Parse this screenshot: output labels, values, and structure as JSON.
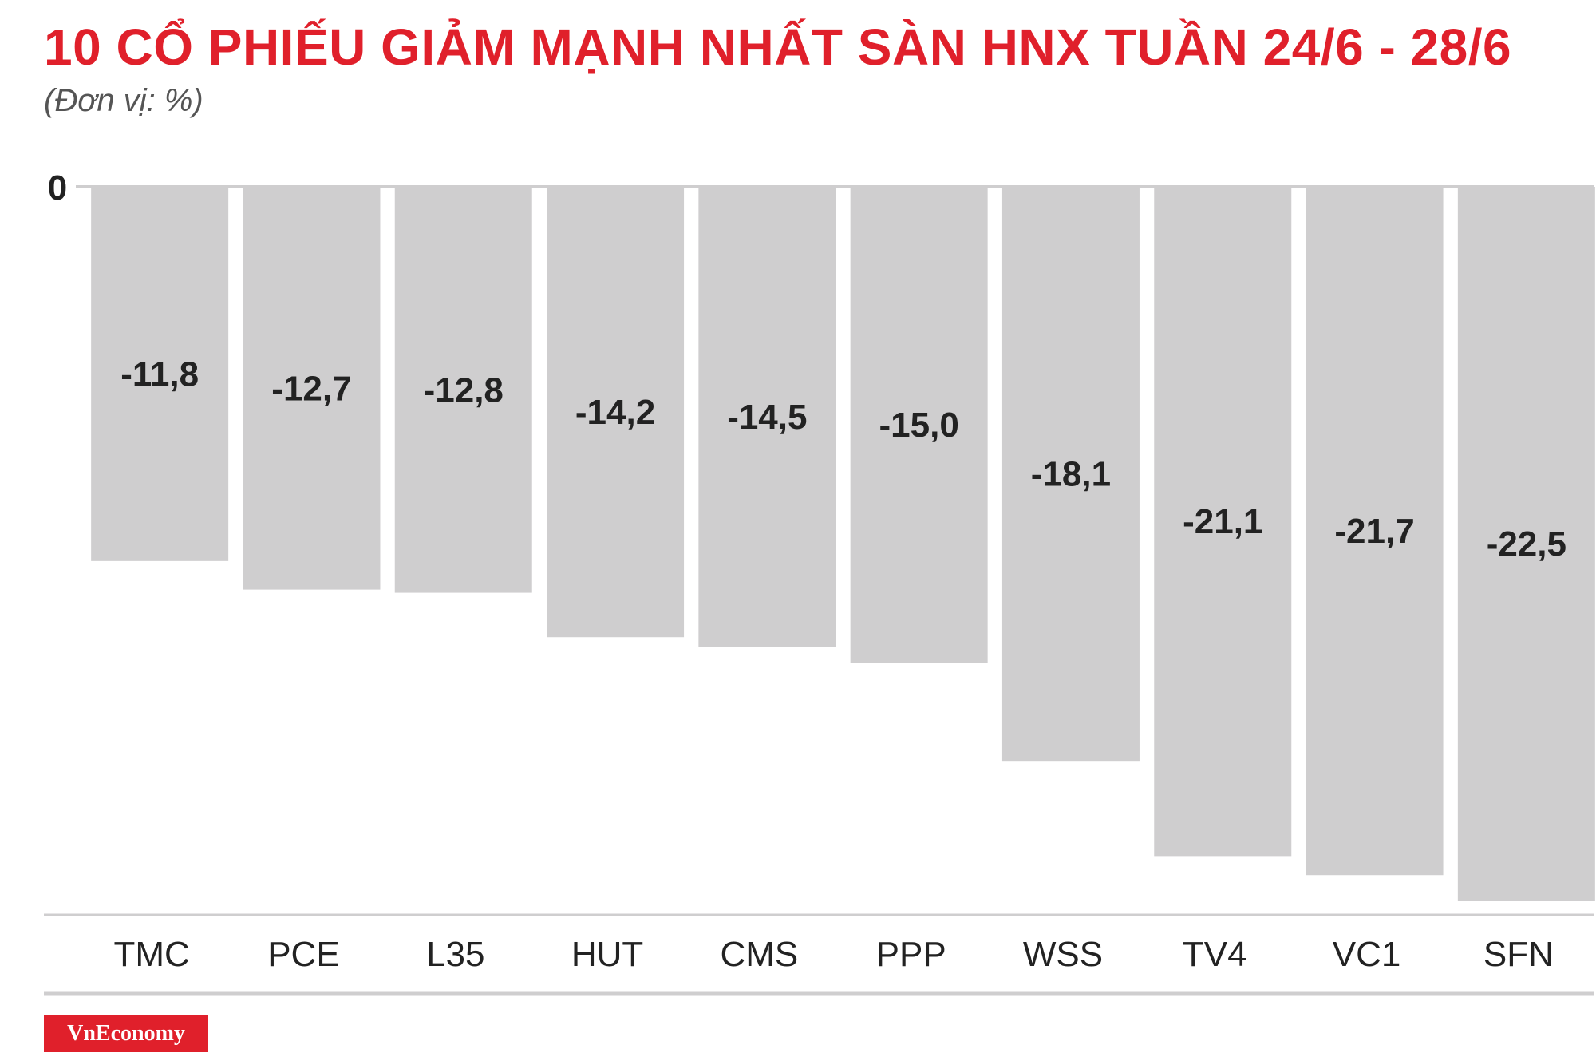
{
  "title": "10 CỔ PHIẾU GIẢM MẠNH NHẤT SÀN HNX TUẦN 24/6 - 28/6",
  "subtitle": "(Đơn vị: %)",
  "logo_text": "VnEconomy",
  "colors": {
    "title": "#e0202b",
    "bar": "#cfcecf",
    "axis": "#cfcecf",
    "logo_bg": "#e0202b"
  },
  "chart_data": {
    "type": "bar",
    "categories": [
      "TMC",
      "PCE",
      "L35",
      "HUT",
      "CMS",
      "PPP",
      "WSS",
      "TV4",
      "VC1",
      "SFN"
    ],
    "values": [
      -11.8,
      -12.7,
      -12.8,
      -14.2,
      -14.5,
      -15.0,
      -18.1,
      -21.1,
      -21.7,
      -22.5
    ],
    "value_labels": [
      "-11,8",
      "-12,7",
      "-12,8",
      "-14,2",
      "-14,5",
      "-15,0",
      "-18,1",
      "-21,1",
      "-21,7",
      "-22,5"
    ],
    "y_tick_labels": [
      "0"
    ],
    "ylim": [
      -22.5,
      0
    ],
    "grid": false,
    "legend": "none"
  }
}
